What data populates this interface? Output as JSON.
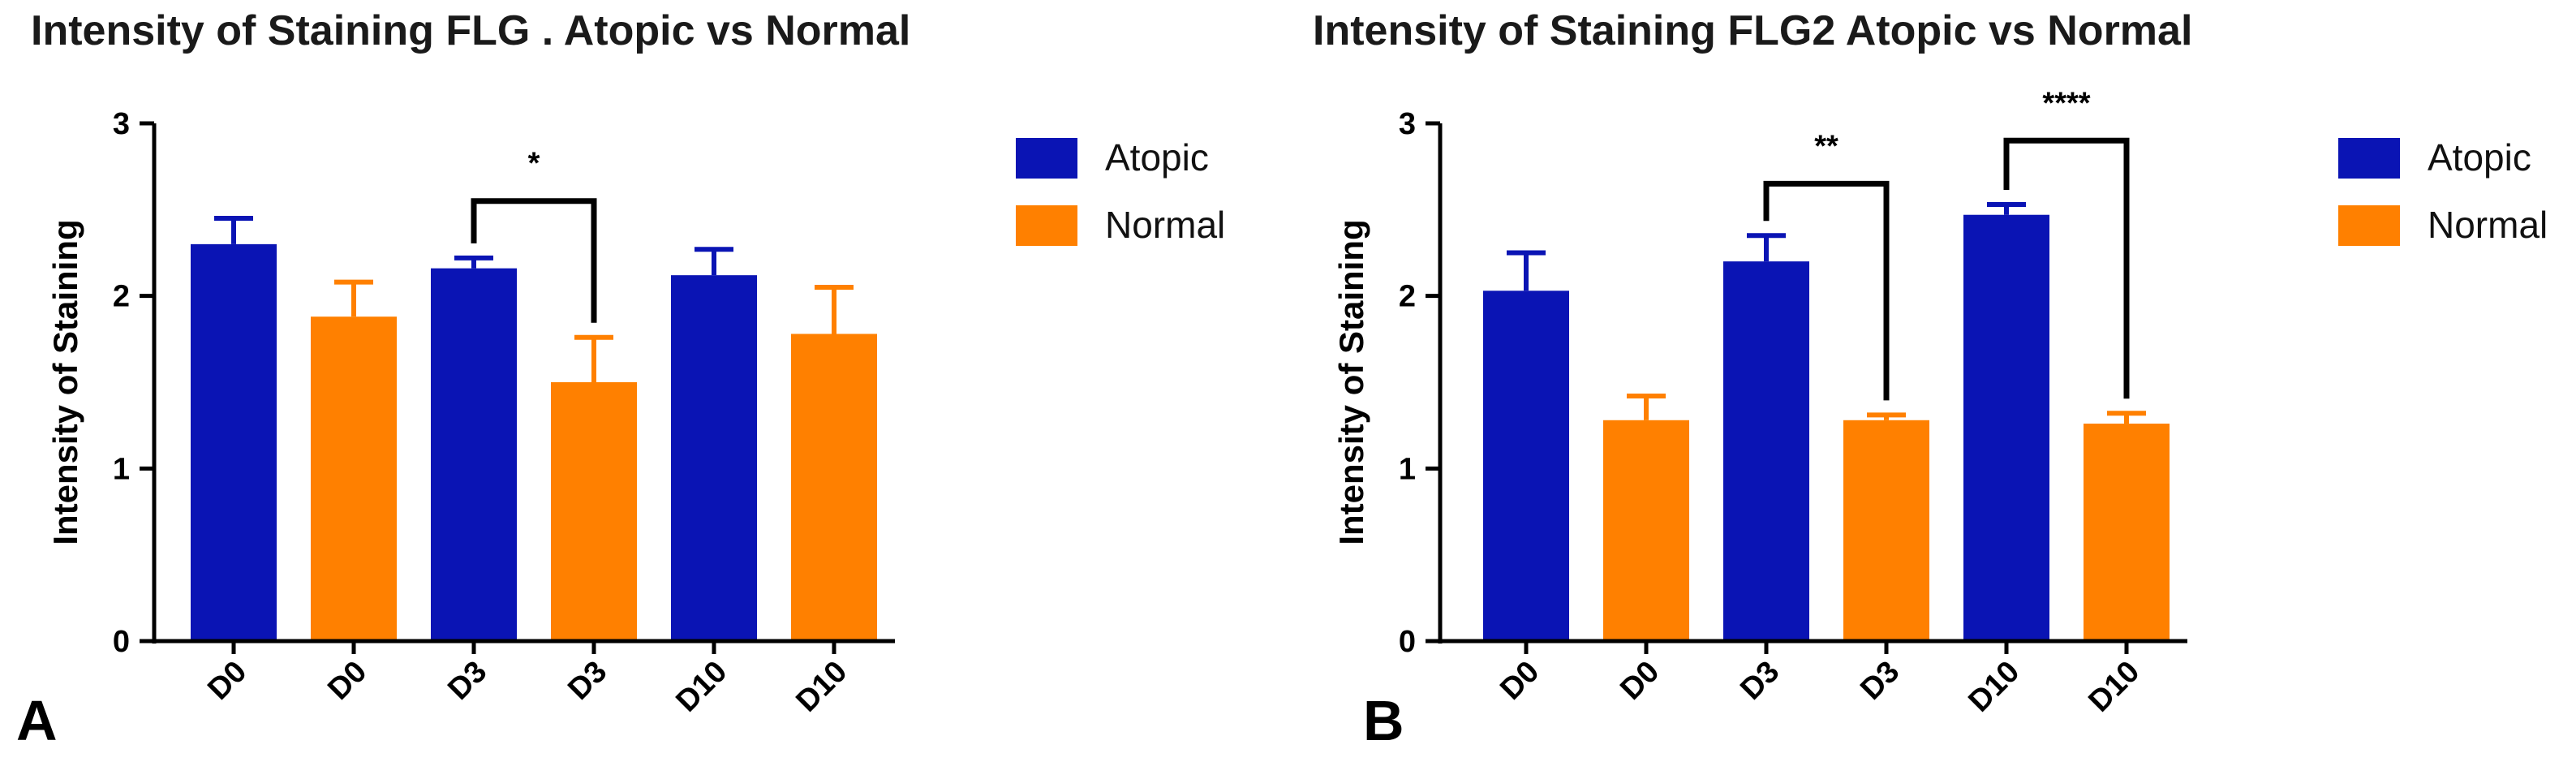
{
  "chart_data": [
    {
      "type": "bar",
      "panel": "A",
      "title": "Intensity of Staining FLG . Atopic vs Normal",
      "ylabel": "Intensity of Staining",
      "xlabel": "",
      "ylim": [
        0,
        3
      ],
      "yticks": [
        "0",
        "1",
        "2",
        "3"
      ],
      "legend": [
        {
          "name": "Atopic",
          "color": "#0a14b4"
        },
        {
          "name": "Normal",
          "color": "#ff8000"
        }
      ],
      "categories": [
        "D0",
        "D0",
        "D3",
        "D3",
        "D10",
        "D10"
      ],
      "groups": [
        "Atopic",
        "Normal",
        "Atopic",
        "Normal",
        "Atopic",
        "Normal"
      ],
      "values": [
        2.3,
        1.88,
        2.16,
        1.5,
        2.12,
        1.78
      ],
      "errors": [
        0.15,
        0.2,
        0.06,
        0.26,
        0.15,
        0.27
      ],
      "significance": [
        {
          "from": 2,
          "to": 3,
          "label": "*",
          "y": 2.55
        }
      ]
    },
    {
      "type": "bar",
      "panel": "B",
      "title": "Intensity of Staining FLG2 Atopic vs Normal",
      "ylabel": "Intensity of Staining",
      "xlabel": "",
      "ylim": [
        0,
        3
      ],
      "yticks": [
        "0",
        "1",
        "2",
        "3"
      ],
      "legend": [
        {
          "name": "Atopic",
          "color": "#0a14b4"
        },
        {
          "name": "Normal",
          "color": "#ff8000"
        }
      ],
      "categories": [
        "D0",
        "D0",
        "D3",
        "D3",
        "D10",
        "D10"
      ],
      "groups": [
        "Atopic",
        "Normal",
        "Atopic",
        "Normal",
        "Atopic",
        "Normal"
      ],
      "values": [
        2.03,
        1.28,
        2.2,
        1.28,
        2.47,
        1.26
      ],
      "errors": [
        0.22,
        0.14,
        0.15,
        0.03,
        0.06,
        0.06
      ],
      "significance": [
        {
          "from": 2,
          "to": 3,
          "label": "**",
          "y": 2.65
        },
        {
          "from": 4,
          "to": 5,
          "label": "****",
          "y": 2.9
        }
      ]
    }
  ]
}
